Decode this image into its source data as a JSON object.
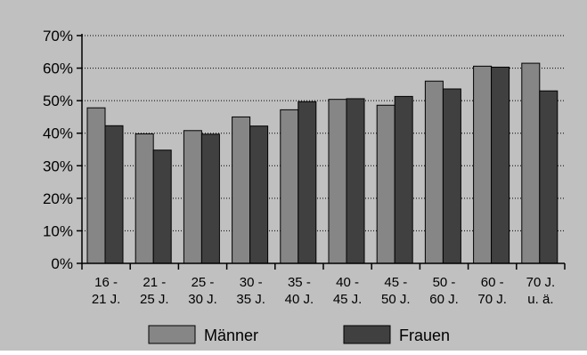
{
  "chart_data": {
    "type": "bar",
    "categories": [
      [
        "16 -",
        "21 J."
      ],
      [
        "21 -",
        "25 J."
      ],
      [
        "25 -",
        "30 J."
      ],
      [
        "30 -",
        "35 J."
      ],
      [
        "35 -",
        "40 J."
      ],
      [
        "40 -",
        "45 J."
      ],
      [
        "45 -",
        "50 J."
      ],
      [
        "50 -",
        "60 J."
      ],
      [
        "60 -",
        "70 J."
      ],
      [
        "70 J.",
        "u. ä."
      ]
    ],
    "series": [
      {
        "name": "Männer",
        "values": [
          47.8,
          39.8,
          40.8,
          45.0,
          47.2,
          50.4,
          48.6,
          56.0,
          60.6,
          61.5
        ]
      },
      {
        "name": "Frauen",
        "values": [
          42.3,
          34.8,
          39.7,
          42.2,
          49.7,
          50.6,
          51.3,
          53.6,
          60.3,
          53.0
        ]
      }
    ],
    "ylim": [
      0,
      70
    ],
    "yticks": [
      0,
      10,
      20,
      30,
      40,
      50,
      60,
      70
    ],
    "y_tick_format": "{v}%",
    "grid": true,
    "legend_position": "bottom",
    "colors": {
      "background": "#c0c0c0",
      "Männer": "#868686",
      "Frauen": "#404040",
      "axis": "#000000",
      "grid": "#000000"
    }
  }
}
